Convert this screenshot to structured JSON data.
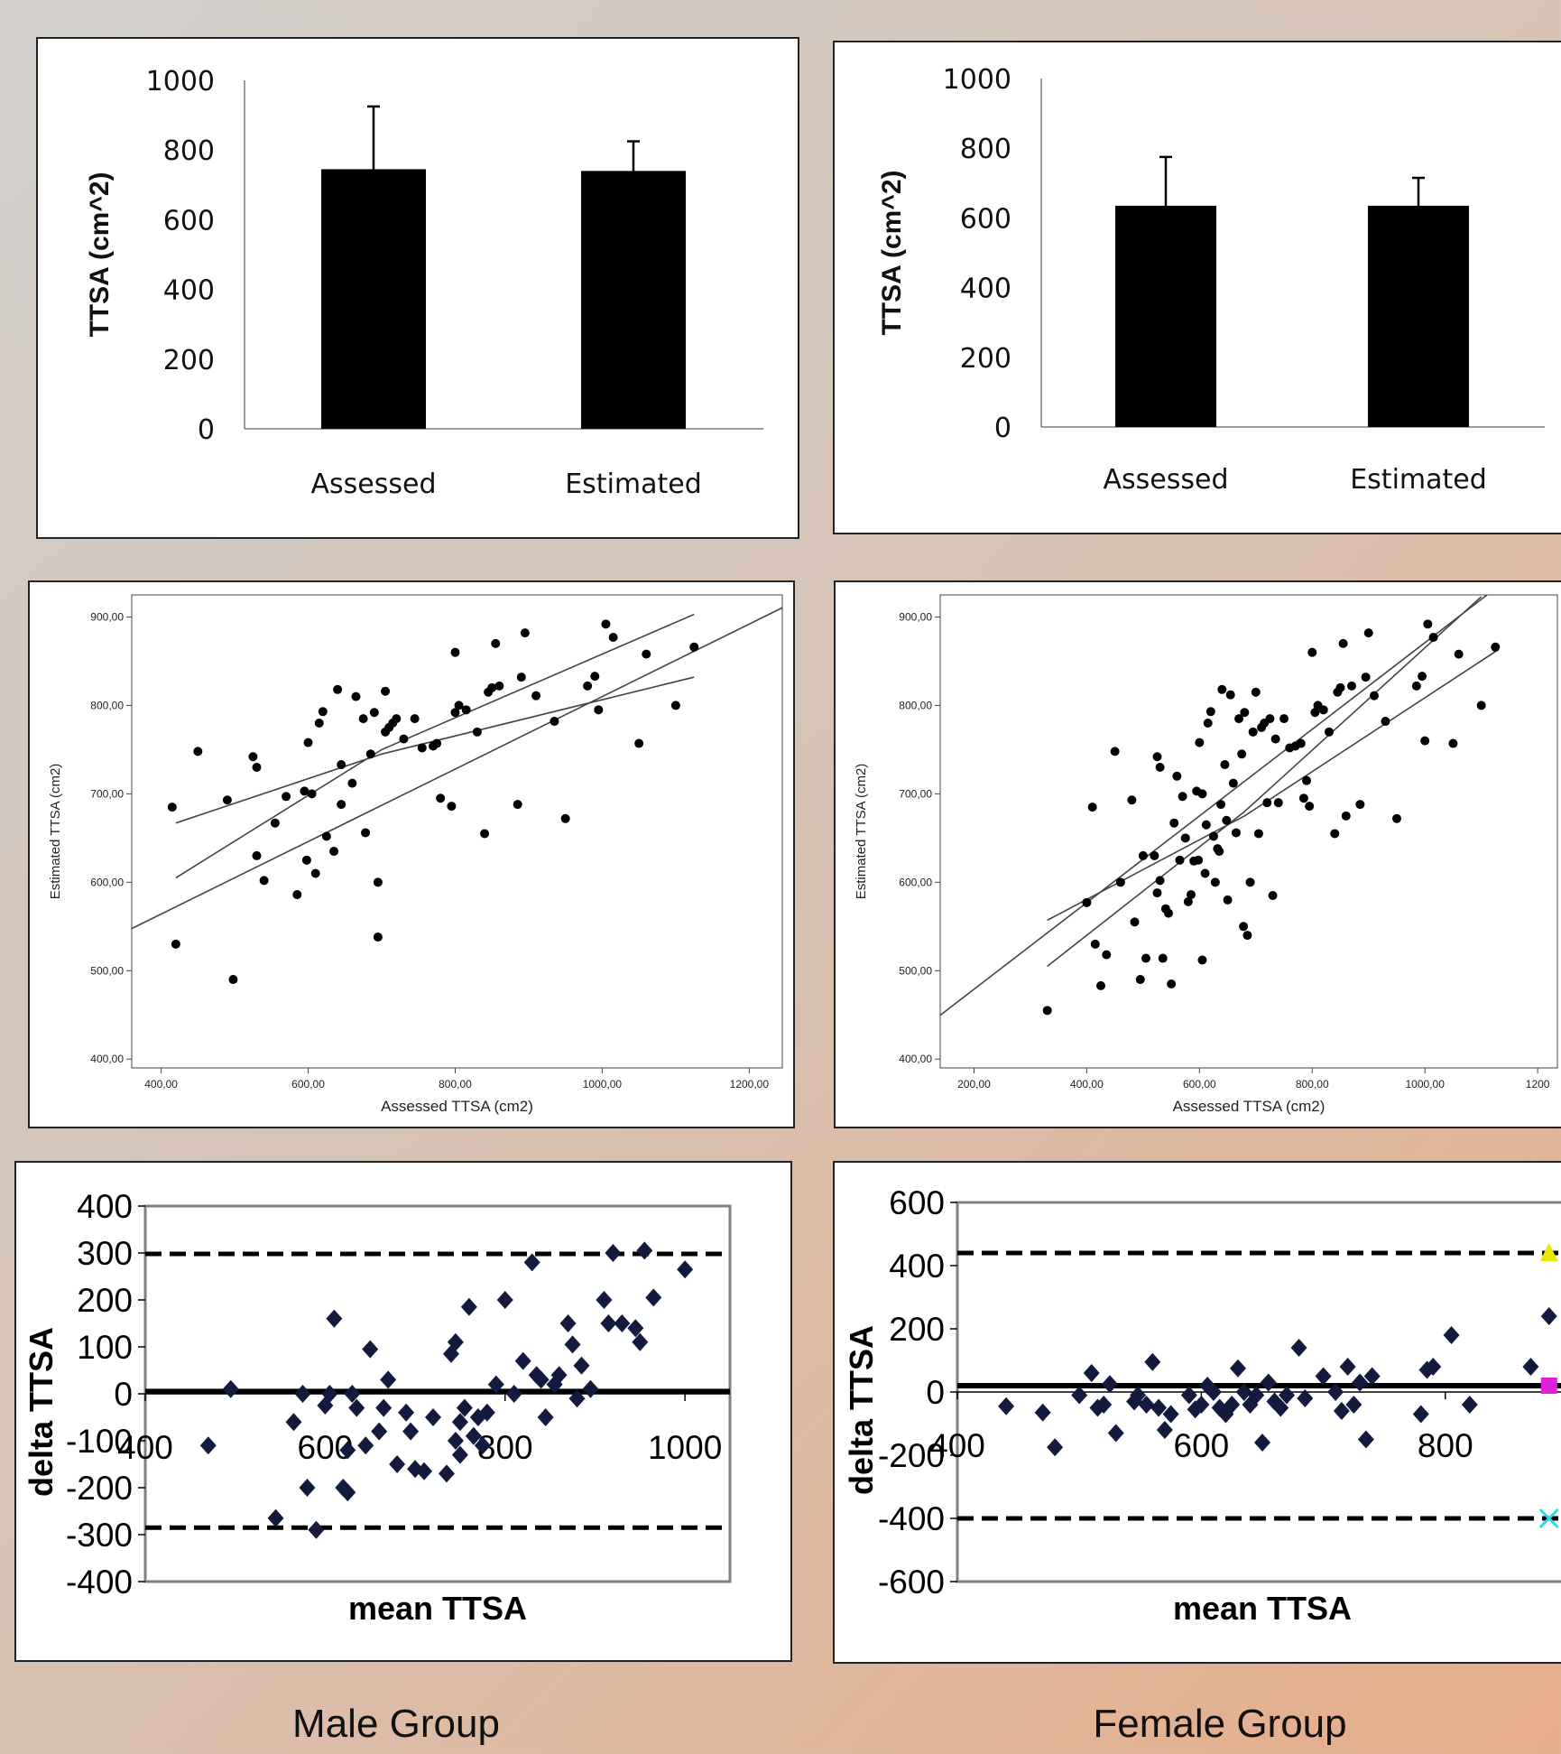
{
  "group_labels": {
    "male": "Male Group",
    "female": "Female Group"
  },
  "chart_data": [
    {
      "id": "male-bar",
      "type": "bar",
      "categories": [
        "Assessed",
        "Estimated"
      ],
      "values": [
        745,
        740
      ],
      "error_upper": [
        925,
        825
      ],
      "ylabel": "TTSA (cm^2)",
      "ylim": [
        0,
        1000
      ],
      "yticks": [
        "1000",
        "800",
        "600",
        "400",
        "200",
        "0"
      ],
      "bar_color": "#000000"
    },
    {
      "id": "female-bar",
      "type": "bar",
      "categories": [
        "Assessed",
        "Estimated"
      ],
      "values": [
        635,
        635
      ],
      "error_upper": [
        775,
        715
      ],
      "ylabel": "TTSA (cm^2)",
      "ylim": [
        0,
        1000
      ],
      "yticks": [
        "1000",
        "800",
        "600",
        "400",
        "200",
        "0"
      ],
      "bar_color": "#000000"
    },
    {
      "id": "male-scatter",
      "type": "scatter",
      "xlabel": "Assessed TTSA (cm2)",
      "ylabel": "Estimated TTSA (cm2)",
      "xlim": [
        360,
        1245
      ],
      "ylim": [
        390,
        925
      ],
      "xticks": [
        "400,00",
        "600,00",
        "800,00",
        "1000,00",
        "1200,00"
      ],
      "yticks": [
        "400,00",
        "500,00",
        "600,00",
        "700,00",
        "800,00",
        "900,00"
      ],
      "fit": {
        "slope": 0.41,
        "intercept": 400
      },
      "ci_upper": [
        [
          420,
          605
        ],
        [
          700,
          750
        ],
        [
          1125,
          903
        ]
      ],
      "ci_lower": [
        [
          420,
          667
        ],
        [
          700,
          745
        ],
        [
          1125,
          832
        ]
      ],
      "points": [
        [
          415,
          685
        ],
        [
          420,
          530
        ],
        [
          450,
          748
        ],
        [
          490,
          693
        ],
        [
          498,
          490
        ],
        [
          525,
          742
        ],
        [
          530,
          630
        ],
        [
          530,
          730
        ],
        [
          540,
          602
        ],
        [
          555,
          667
        ],
        [
          570,
          697
        ],
        [
          585,
          586
        ],
        [
          595,
          703
        ],
        [
          598,
          625
        ],
        [
          600,
          758
        ],
        [
          605,
          700
        ],
        [
          610,
          610
        ],
        [
          615,
          780
        ],
        [
          620,
          793
        ],
        [
          625,
          652
        ],
        [
          635,
          635
        ],
        [
          640,
          818
        ],
        [
          645,
          733
        ],
        [
          645,
          688
        ],
        [
          660,
          712
        ],
        [
          665,
          810
        ],
        [
          675,
          785
        ],
        [
          678,
          656
        ],
        [
          685,
          745
        ],
        [
          690,
          792
        ],
        [
          695,
          600
        ],
        [
          695,
          538
        ],
        [
          705,
          816
        ],
        [
          705,
          770
        ],
        [
          710,
          775
        ],
        [
          715,
          780
        ],
        [
          720,
          785
        ],
        [
          730,
          762
        ],
        [
          745,
          785
        ],
        [
          755,
          752
        ],
        [
          770,
          754
        ],
        [
          775,
          757
        ],
        [
          780,
          695
        ],
        [
          795,
          686
        ],
        [
          800,
          860
        ],
        [
          800,
          792
        ],
        [
          805,
          800
        ],
        [
          815,
          795
        ],
        [
          830,
          770
        ],
        [
          840,
          655
        ],
        [
          845,
          815
        ],
        [
          850,
          820
        ],
        [
          855,
          870
        ],
        [
          860,
          822
        ],
        [
          885,
          688
        ],
        [
          890,
          832
        ],
        [
          895,
          882
        ],
        [
          910,
          811
        ],
        [
          935,
          782
        ],
        [
          950,
          672
        ],
        [
          980,
          822
        ],
        [
          990,
          833
        ],
        [
          995,
          795
        ],
        [
          1005,
          892
        ],
        [
          1015,
          877
        ],
        [
          1050,
          757
        ],
        [
          1060,
          858
        ],
        [
          1100,
          800
        ],
        [
          1125,
          866
        ]
      ]
    },
    {
      "id": "female-scatter",
      "type": "scatter",
      "xlabel": "Assessed TTSA (cm2)",
      "ylabel": "Estimated TTSA (cm2)",
      "xlim": [
        140,
        1235
      ],
      "ylim": [
        390,
        925
      ],
      "xticks": [
        "200,00",
        "400,00",
        "600,00",
        "800,00",
        "1000,00",
        "1200"
      ],
      "yticks": [
        "400,00",
        "500,00",
        "600,00",
        "700,00",
        "800,00",
        "900,00"
      ],
      "fit": {
        "slope": 0.49,
        "intercept": 381
      },
      "ci_upper": [
        [
          330,
          505
        ],
        [
          680,
          680
        ],
        [
          1100,
          923
        ]
      ],
      "ci_lower": [
        [
          330,
          557
        ],
        [
          680,
          675
        ],
        [
          1130,
          863
        ]
      ],
      "points": [
        [
          330,
          455
        ],
        [
          400,
          577
        ],
        [
          410,
          685
        ],
        [
          415,
          530
        ],
        [
          425,
          483
        ],
        [
          435,
          518
        ],
        [
          450,
          748
        ],
        [
          460,
          600
        ],
        [
          480,
          693
        ],
        [
          485,
          555
        ],
        [
          495,
          490
        ],
        [
          500,
          630
        ],
        [
          505,
          514
        ],
        [
          520,
          630
        ],
        [
          525,
          742
        ],
        [
          525,
          588
        ],
        [
          530,
          730
        ],
        [
          530,
          602
        ],
        [
          535,
          514
        ],
        [
          540,
          570
        ],
        [
          545,
          565
        ],
        [
          550,
          485
        ],
        [
          555,
          667
        ],
        [
          560,
          720
        ],
        [
          565,
          625
        ],
        [
          570,
          697
        ],
        [
          575,
          650
        ],
        [
          580,
          578
        ],
        [
          585,
          586
        ],
        [
          590,
          624
        ],
        [
          595,
          703
        ],
        [
          598,
          625
        ],
        [
          600,
          758
        ],
        [
          605,
          512
        ],
        [
          605,
          700
        ],
        [
          610,
          610
        ],
        [
          612,
          665
        ],
        [
          615,
          780
        ],
        [
          620,
          793
        ],
        [
          625,
          652
        ],
        [
          628,
          600
        ],
        [
          632,
          638
        ],
        [
          635,
          635
        ],
        [
          638,
          688
        ],
        [
          640,
          818
        ],
        [
          645,
          733
        ],
        [
          648,
          670
        ],
        [
          650,
          580
        ],
        [
          655,
          812
        ],
        [
          660,
          712
        ],
        [
          665,
          656
        ],
        [
          670,
          785
        ],
        [
          675,
          745
        ],
        [
          678,
          550
        ],
        [
          680,
          792
        ],
        [
          685,
          540
        ],
        [
          690,
          600
        ],
        [
          695,
          770
        ],
        [
          700,
          815
        ],
        [
          705,
          655
        ],
        [
          710,
          775
        ],
        [
          715,
          780
        ],
        [
          720,
          690
        ],
        [
          725,
          785
        ],
        [
          730,
          585
        ],
        [
          735,
          762
        ],
        [
          740,
          690
        ],
        [
          750,
          785
        ],
        [
          760,
          752
        ],
        [
          770,
          754
        ],
        [
          780,
          757
        ],
        [
          785,
          695
        ],
        [
          790,
          715
        ],
        [
          795,
          686
        ],
        [
          800,
          860
        ],
        [
          805,
          792
        ],
        [
          810,
          800
        ],
        [
          820,
          795
        ],
        [
          830,
          770
        ],
        [
          840,
          655
        ],
        [
          845,
          815
        ],
        [
          850,
          820
        ],
        [
          855,
          870
        ],
        [
          860,
          675
        ],
        [
          870,
          822
        ],
        [
          885,
          688
        ],
        [
          895,
          832
        ],
        [
          900,
          882
        ],
        [
          910,
          811
        ],
        [
          930,
          782
        ],
        [
          950,
          672
        ],
        [
          985,
          822
        ],
        [
          995,
          833
        ],
        [
          1000,
          760
        ],
        [
          1005,
          892
        ],
        [
          1015,
          877
        ],
        [
          1050,
          757
        ],
        [
          1060,
          858
        ],
        [
          1100,
          800
        ],
        [
          1125,
          866
        ]
      ]
    },
    {
      "id": "male-ba",
      "type": "scatter",
      "xlabel": "mean TTSA",
      "ylabel": "delta TTSA",
      "xlim": [
        400,
        1050
      ],
      "ylim": [
        -400,
        400
      ],
      "xticks": [
        "400",
        "600",
        "800",
        "1000"
      ],
      "yticks": [
        "400",
        "300",
        "200",
        "100",
        "0",
        "-100",
        "-200",
        "-300",
        "-400"
      ],
      "mean_line": 5,
      "loa": [
        298,
        -285
      ],
      "point_color": "#141a3e",
      "points": [
        [
          470,
          -110
        ],
        [
          495,
          10
        ],
        [
          545,
          -265
        ],
        [
          565,
          -60
        ],
        [
          575,
          0
        ],
        [
          580,
          -200
        ],
        [
          590,
          -290
        ],
        [
          600,
          -25
        ],
        [
          605,
          0
        ],
        [
          610,
          160
        ],
        [
          620,
          -200
        ],
        [
          625,
          -210
        ],
        [
          625,
          -120
        ],
        [
          630,
          0
        ],
        [
          635,
          -30
        ],
        [
          645,
          -110
        ],
        [
          650,
          95
        ],
        [
          660,
          -80
        ],
        [
          665,
          -30
        ],
        [
          670,
          30
        ],
        [
          680,
          -150
        ],
        [
          690,
          -40
        ],
        [
          695,
          -80
        ],
        [
          700,
          -160
        ],
        [
          710,
          -165
        ],
        [
          720,
          -50
        ],
        [
          735,
          -170
        ],
        [
          740,
          85
        ],
        [
          745,
          -100
        ],
        [
          745,
          110
        ],
        [
          750,
          -130
        ],
        [
          750,
          -60
        ],
        [
          755,
          -30
        ],
        [
          760,
          185
        ],
        [
          765,
          -90
        ],
        [
          770,
          -50
        ],
        [
          775,
          -110
        ],
        [
          780,
          -40
        ],
        [
          790,
          20
        ],
        [
          800,
          200
        ],
        [
          810,
          0
        ],
        [
          820,
          70
        ],
        [
          830,
          280
        ],
        [
          835,
          40
        ],
        [
          840,
          30
        ],
        [
          845,
          -50
        ],
        [
          855,
          20
        ],
        [
          860,
          40
        ],
        [
          870,
          150
        ],
        [
          875,
          105
        ],
        [
          880,
          -10
        ],
        [
          885,
          60
        ],
        [
          895,
          10
        ],
        [
          910,
          200
        ],
        [
          915,
          150
        ],
        [
          920,
          300
        ],
        [
          930,
          150
        ],
        [
          945,
          140
        ],
        [
          950,
          110
        ],
        [
          955,
          305
        ],
        [
          965,
          205
        ],
        [
          1000,
          265
        ]
      ]
    },
    {
      "id": "female-ba",
      "type": "scatter",
      "xlabel": "mean TTSA",
      "ylabel": "delta TTSA",
      "xlim": [
        400,
        900
      ],
      "ylim": [
        -600,
        600
      ],
      "xticks": [
        "400",
        "600",
        "800"
      ],
      "yticks": [
        "600",
        "400",
        "200",
        "0",
        "-200",
        "-400",
        "-600"
      ],
      "mean_line": 20,
      "loa": [
        440,
        -400
      ],
      "point_color": "#141a3e",
      "points": [
        [
          440,
          -45
        ],
        [
          470,
          -65
        ],
        [
          480,
          -175
        ],
        [
          500,
          -10
        ],
        [
          510,
          60
        ],
        [
          515,
          -50
        ],
        [
          520,
          -40
        ],
        [
          525,
          25
        ],
        [
          530,
          -130
        ],
        [
          545,
          -30
        ],
        [
          548,
          -10
        ],
        [
          555,
          -40
        ],
        [
          560,
          95
        ],
        [
          565,
          -50
        ],
        [
          570,
          -120
        ],
        [
          575,
          -70
        ],
        [
          590,
          -10
        ],
        [
          595,
          -55
        ],
        [
          600,
          -40
        ],
        [
          605,
          20
        ],
        [
          610,
          0
        ],
        [
          615,
          -50
        ],
        [
          620,
          -70
        ],
        [
          625,
          -40
        ],
        [
          630,
          75
        ],
        [
          635,
          0
        ],
        [
          640,
          -40
        ],
        [
          645,
          -10
        ],
        [
          650,
          -160
        ],
        [
          655,
          30
        ],
        [
          660,
          -30
        ],
        [
          665,
          -50
        ],
        [
          670,
          -10
        ],
        [
          680,
          140
        ],
        [
          685,
          -20
        ],
        [
          700,
          50
        ],
        [
          710,
          0
        ],
        [
          715,
          -60
        ],
        [
          720,
          80
        ],
        [
          725,
          -40
        ],
        [
          730,
          30
        ],
        [
          735,
          -150
        ],
        [
          740,
          50
        ],
        [
          780,
          -70
        ],
        [
          785,
          70
        ],
        [
          790,
          80
        ],
        [
          805,
          180
        ],
        [
          820,
          -40
        ],
        [
          870,
          80
        ],
        [
          885,
          240
        ]
      ],
      "markers": [
        {
          "x": 885,
          "y": 440,
          "shape": "triangle",
          "color": "#e8e800"
        },
        {
          "x": 885,
          "y": 20,
          "shape": "square",
          "color": "#e020d8"
        },
        {
          "x": 885,
          "y": -400,
          "shape": "cross",
          "color": "#30d8e8"
        }
      ]
    }
  ]
}
